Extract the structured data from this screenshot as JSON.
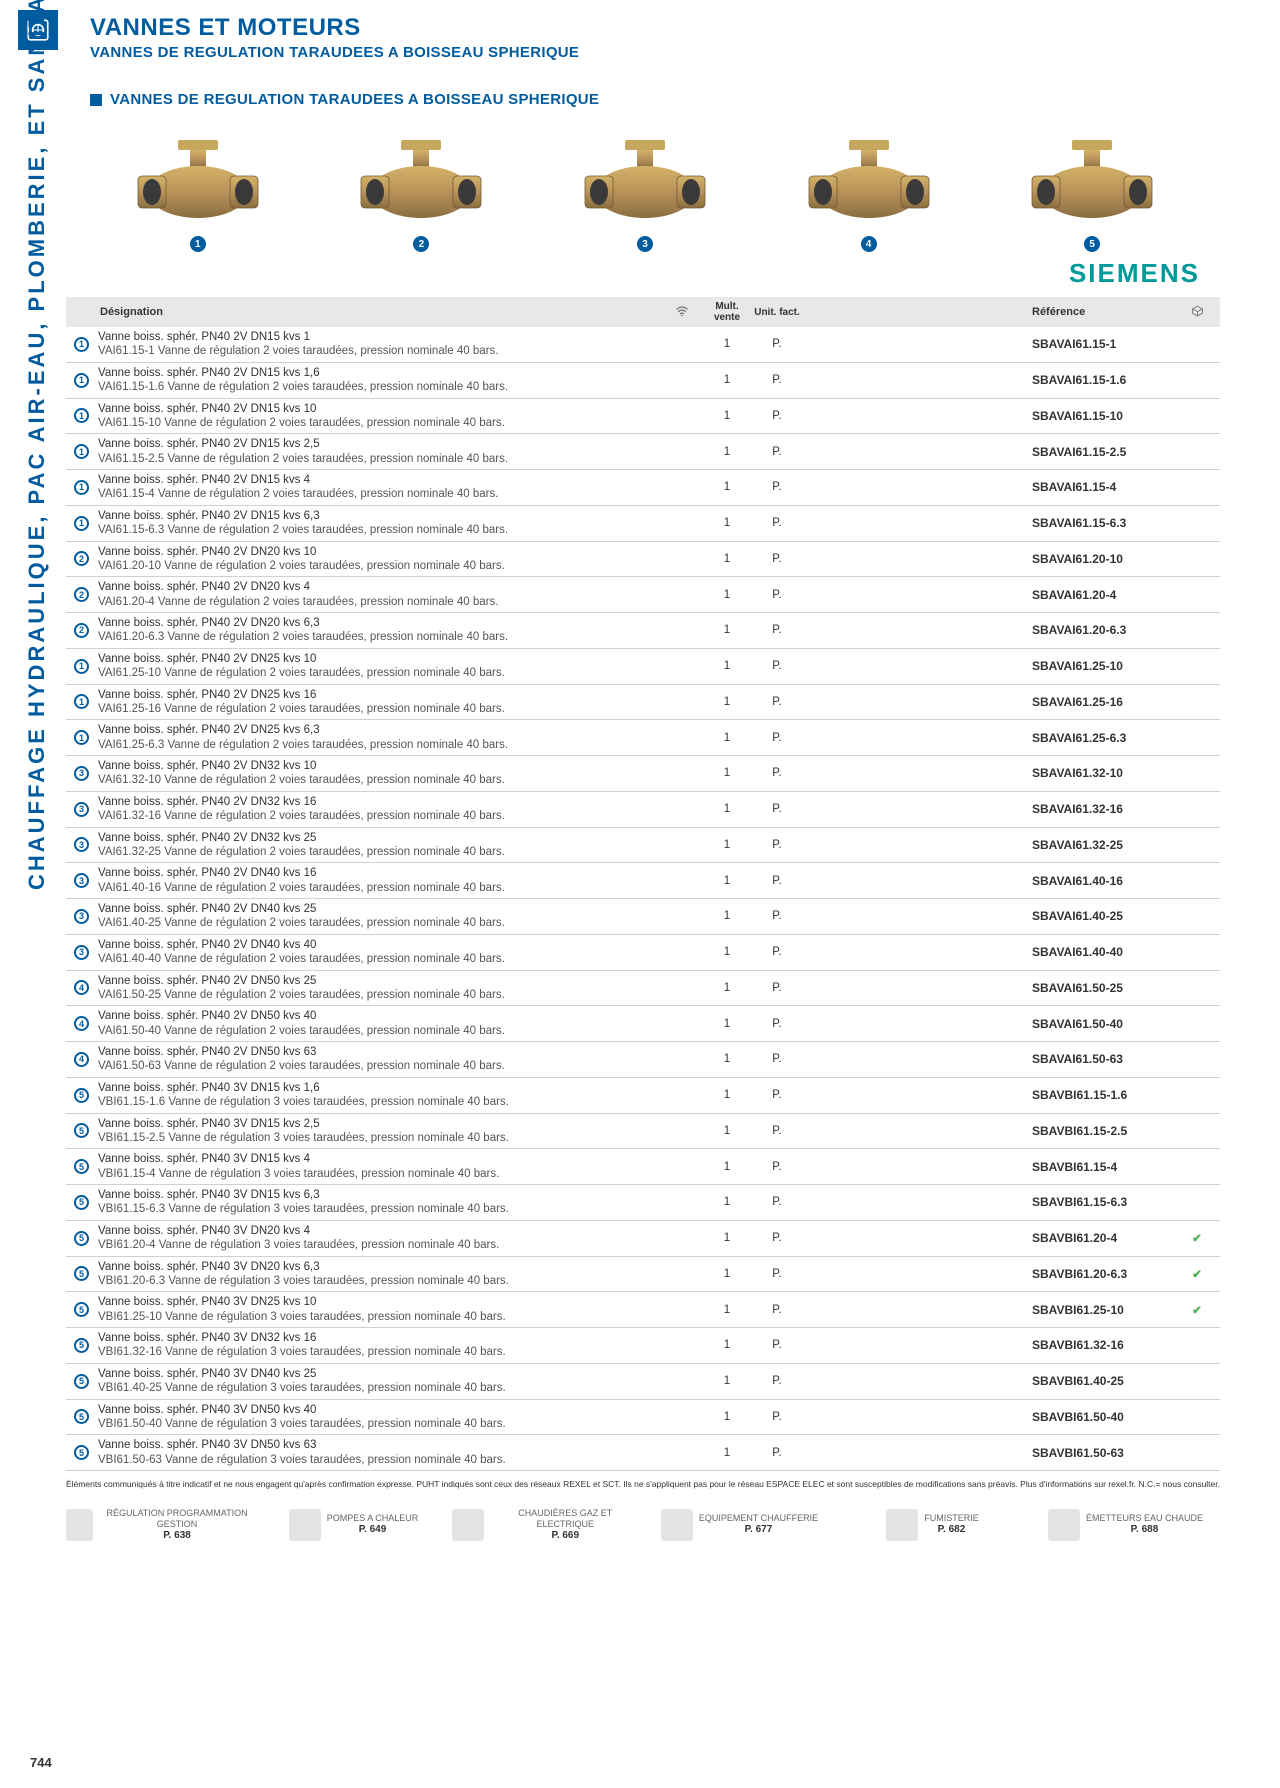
{
  "header": {
    "title": "VANNES ET MOTEURS",
    "subtitle": "VANNES DE REGULATION TARAUDEES A BOISSEAU SPHERIQUE",
    "section": "VANNES DE REGULATION TARAUDEES A BOISSEAU SPHERIQUE"
  },
  "brand": "SIEMENS",
  "side_label": "CHAUFFAGE HYDRAULIQUE, PAC AIR-EAU, PLOMBERIE, ET SANITAIRE",
  "page_number": "744",
  "colors": {
    "primary": "#005b9f",
    "brand": "#009999",
    "row_border": "#d0d0d0",
    "header_bg": "#e8e8e8",
    "check": "#4caf50"
  },
  "table": {
    "headers": {
      "designation": "Désignation",
      "mult": "Mult. vente",
      "unit": "Unit. fact.",
      "reference": "Référence"
    },
    "rows": [
      {
        "num": "1",
        "l1": "Vanne boiss. sphér. PN40 2V DN15 kvs 1",
        "l2": "VAI61.15-1 Vanne de régulation 2 voies taraudées, pression nominale 40 bars.",
        "mult": "1",
        "unit": "P.",
        "ref": "SBAVAI61.15-1",
        "chk": ""
      },
      {
        "num": "1",
        "l1": "Vanne boiss. sphér. PN40 2V DN15 kvs 1,6",
        "l2": "VAI61.15-1.6 Vanne de régulation 2 voies taraudées, pression nominale 40 bars.",
        "mult": "1",
        "unit": "P.",
        "ref": "SBAVAI61.15-1.6",
        "chk": ""
      },
      {
        "num": "1",
        "l1": "Vanne boiss. sphér. PN40 2V DN15 kvs 10",
        "l2": "VAI61.15-10 Vanne de régulation 2 voies taraudées, pression nominale 40 bars.",
        "mult": "1",
        "unit": "P.",
        "ref": "SBAVAI61.15-10",
        "chk": ""
      },
      {
        "num": "1",
        "l1": "Vanne boiss. sphér. PN40 2V DN15 kvs 2,5",
        "l2": "VAI61.15-2.5 Vanne de régulation 2 voies taraudées, pression nominale 40 bars.",
        "mult": "1",
        "unit": "P.",
        "ref": "SBAVAI61.15-2.5",
        "chk": ""
      },
      {
        "num": "1",
        "l1": "Vanne boiss. sphér. PN40 2V DN15 kvs 4",
        "l2": "VAI61.15-4 Vanne de régulation 2 voies taraudées, pression nominale 40 bars.",
        "mult": "1",
        "unit": "P.",
        "ref": "SBAVAI61.15-4",
        "chk": ""
      },
      {
        "num": "1",
        "l1": "Vanne boiss. sphér. PN40 2V DN15 kvs 6,3",
        "l2": "VAI61.15-6.3 Vanne de régulation 2 voies taraudées, pression nominale 40 bars.",
        "mult": "1",
        "unit": "P.",
        "ref": "SBAVAI61.15-6.3",
        "chk": ""
      },
      {
        "num": "2",
        "l1": "Vanne boiss. sphér. PN40 2V DN20 kvs 10",
        "l2": "VAI61.20-10 Vanne de régulation 2 voies taraudées, pression nominale 40 bars.",
        "mult": "1",
        "unit": "P.",
        "ref": "SBAVAI61.20-10",
        "chk": ""
      },
      {
        "num": "2",
        "l1": "Vanne boiss. sphér. PN40 2V DN20 kvs 4",
        "l2": "VAI61.20-4 Vanne de régulation 2 voies taraudées, pression nominale 40 bars.",
        "mult": "1",
        "unit": "P.",
        "ref": "SBAVAI61.20-4",
        "chk": ""
      },
      {
        "num": "2",
        "l1": "Vanne boiss. sphér. PN40 2V DN20 kvs 6,3",
        "l2": "VAI61.20-6.3 Vanne de régulation 2 voies taraudées, pression nominale 40 bars.",
        "mult": "1",
        "unit": "P.",
        "ref": "SBAVAI61.20-6.3",
        "chk": ""
      },
      {
        "num": "1",
        "l1": "Vanne boiss. sphér. PN40 2V DN25 kvs 10",
        "l2": "VAI61.25-10 Vanne de régulation 2 voies taraudées, pression nominale 40 bars.",
        "mult": "1",
        "unit": "P.",
        "ref": "SBAVAI61.25-10",
        "chk": ""
      },
      {
        "num": "1",
        "l1": "Vanne boiss. sphér. PN40 2V DN25 kvs 16",
        "l2": "VAI61.25-16 Vanne de régulation 2 voies taraudées, pression nominale 40 bars.",
        "mult": "1",
        "unit": "P.",
        "ref": "SBAVAI61.25-16",
        "chk": ""
      },
      {
        "num": "1",
        "l1": "Vanne boiss. sphér. PN40 2V DN25 kvs 6,3",
        "l2": "VAI61.25-6.3 Vanne de régulation 2 voies taraudées, pression nominale 40 bars.",
        "mult": "1",
        "unit": "P.",
        "ref": "SBAVAI61.25-6.3",
        "chk": ""
      },
      {
        "num": "3",
        "l1": "Vanne boiss. sphér. PN40 2V DN32 kvs 10",
        "l2": "VAI61.32-10 Vanne de régulation 2 voies taraudées, pression nominale 40 bars.",
        "mult": "1",
        "unit": "P.",
        "ref": "SBAVAI61.32-10",
        "chk": ""
      },
      {
        "num": "3",
        "l1": "Vanne boiss. sphér. PN40 2V DN32 kvs 16",
        "l2": "VAI61.32-16 Vanne de régulation 2 voies taraudées, pression nominale 40 bars.",
        "mult": "1",
        "unit": "P.",
        "ref": "SBAVAI61.32-16",
        "chk": ""
      },
      {
        "num": "3",
        "l1": "Vanne boiss. sphér. PN40 2V DN32 kvs 25",
        "l2": "VAI61.32-25 Vanne de régulation 2 voies taraudées, pression nominale 40 bars.",
        "mult": "1",
        "unit": "P.",
        "ref": "SBAVAI61.32-25",
        "chk": ""
      },
      {
        "num": "3",
        "l1": "Vanne boiss. sphér. PN40 2V DN40 kvs 16",
        "l2": "VAI61.40-16 Vanne de régulation 2 voies taraudées, pression nominale 40 bars.",
        "mult": "1",
        "unit": "P.",
        "ref": "SBAVAI61.40-16",
        "chk": ""
      },
      {
        "num": "3",
        "l1": "Vanne boiss. sphér. PN40 2V DN40 kvs 25",
        "l2": "VAI61.40-25 Vanne de régulation 2 voies taraudées, pression nominale 40 bars.",
        "mult": "1",
        "unit": "P.",
        "ref": "SBAVAI61.40-25",
        "chk": ""
      },
      {
        "num": "3",
        "l1": "Vanne boiss. sphér. PN40 2V DN40 kvs 40",
        "l2": "VAI61.40-40 Vanne de régulation 2 voies taraudées, pression nominale 40 bars.",
        "mult": "1",
        "unit": "P.",
        "ref": "SBAVAI61.40-40",
        "chk": ""
      },
      {
        "num": "4",
        "l1": "Vanne boiss. sphér. PN40 2V DN50 kvs 25",
        "l2": "VAI61.50-25 Vanne de régulation 2 voies taraudées, pression nominale 40 bars.",
        "mult": "1",
        "unit": "P.",
        "ref": "SBAVAI61.50-25",
        "chk": ""
      },
      {
        "num": "4",
        "l1": "Vanne boiss. sphér. PN40 2V DN50 kvs 40",
        "l2": "VAI61.50-40 Vanne de régulation 2 voies taraudées, pression nominale 40 bars.",
        "mult": "1",
        "unit": "P.",
        "ref": "SBAVAI61.50-40",
        "chk": ""
      },
      {
        "num": "4",
        "l1": "Vanne boiss. sphér. PN40 2V DN50 kvs 63",
        "l2": "VAI61.50-63 Vanne de régulation 2 voies taraudées, pression nominale 40 bars.",
        "mult": "1",
        "unit": "P.",
        "ref": "SBAVAI61.50-63",
        "chk": ""
      },
      {
        "num": "5",
        "l1": "Vanne boiss. sphér. PN40 3V DN15 kvs 1,6",
        "l2": "VBI61.15-1.6 Vanne de régulation 3 voies taraudées, pression nominale 40 bars.",
        "mult": "1",
        "unit": "P.",
        "ref": "SBAVBI61.15-1.6",
        "chk": ""
      },
      {
        "num": "5",
        "l1": "Vanne boiss. sphér. PN40 3V DN15 kvs 2,5",
        "l2": "VBI61.15-2.5 Vanne de régulation 3 voies taraudées, pression nominale 40 bars.",
        "mult": "1",
        "unit": "P.",
        "ref": "SBAVBI61.15-2.5",
        "chk": ""
      },
      {
        "num": "5",
        "l1": "Vanne boiss. sphér. PN40 3V DN15 kvs 4",
        "l2": "VBI61.15-4 Vanne de régulation 3 voies taraudées, pression nominale 40 bars.",
        "mult": "1",
        "unit": "P.",
        "ref": "SBAVBI61.15-4",
        "chk": ""
      },
      {
        "num": "5",
        "l1": "Vanne boiss. sphér. PN40 3V DN15 kvs 6,3",
        "l2": "VBI61.15-6.3 Vanne de régulation 3 voies taraudées, pression nominale 40 bars.",
        "mult": "1",
        "unit": "P.",
        "ref": "SBAVBI61.15-6.3",
        "chk": ""
      },
      {
        "num": "5",
        "l1": "Vanne boiss. sphér. PN40 3V DN20 kvs 4",
        "l2": "VBI61.20-4 Vanne de régulation 3 voies taraudées, pression nominale 40 bars.",
        "mult": "1",
        "unit": "P.",
        "ref": "SBAVBI61.20-4",
        "chk": "✔"
      },
      {
        "num": "5",
        "l1": "Vanne boiss. sphér. PN40 3V DN20 kvs 6,3",
        "l2": "VBI61.20-6.3 Vanne de régulation 3 voies taraudées, pression nominale 40 bars.",
        "mult": "1",
        "unit": "P.",
        "ref": "SBAVBI61.20-6.3",
        "chk": "✔"
      },
      {
        "num": "5",
        "l1": "Vanne boiss. sphér. PN40 3V DN25 kvs 10",
        "l2": "VBI61.25-10 Vanne de régulation 3 voies taraudées, pression nominale 40 bars.",
        "mult": "1",
        "unit": "P.",
        "ref": "SBAVBI61.25-10",
        "chk": "✔"
      },
      {
        "num": "5",
        "l1": "Vanne boiss. sphér. PN40 3V DN32 kvs 16",
        "l2": "VBI61.32-16 Vanne de régulation 3 voies taraudées, pression nominale 40 bars.",
        "mult": "1",
        "unit": "P.",
        "ref": "SBAVBI61.32-16",
        "chk": ""
      },
      {
        "num": "5",
        "l1": "Vanne boiss. sphér. PN40 3V DN40 kvs 25",
        "l2": "VBI61.40-25 Vanne de régulation 3 voies taraudées, pression nominale 40 bars.",
        "mult": "1",
        "unit": "P.",
        "ref": "SBAVBI61.40-25",
        "chk": ""
      },
      {
        "num": "5",
        "l1": "Vanne boiss. sphér. PN40 3V DN50 kvs 40",
        "l2": "VBI61.50-40 Vanne de régulation 3 voies taraudées, pression nominale 40 bars.",
        "mult": "1",
        "unit": "P.",
        "ref": "SBAVBI61.50-40",
        "chk": ""
      },
      {
        "num": "5",
        "l1": "Vanne boiss. sphér. PN40 3V DN50 kvs 63",
        "l2": "VBI61.50-63 Vanne de régulation 3 voies taraudées, pression nominale 40 bars.",
        "mult": "1",
        "unit": "P.",
        "ref": "SBAVBI61.50-63",
        "chk": ""
      }
    ]
  },
  "footnote": "Éléments communiqués à titre indicatif et ne nous engagent qu'après confirmation expresse. PUHT indiqués sont ceux des réseaux REXEL et SCT. Ils ne s'appliquent pas pour le réseau ESPACE ELEC et sont susceptibles de modifications sans préavis. Plus d'informations sur rexel.fr. N.C.= nous consulter.",
  "footer_nav": [
    {
      "label": "RÉGULATION PROGRAMMATION GESTION",
      "page": "P. 638"
    },
    {
      "label": "POMPES A CHALEUR",
      "page": "P. 649"
    },
    {
      "label": "CHAUDIÈRES GAZ ET ELECTRIQUE",
      "page": "P. 669"
    },
    {
      "label": "EQUIPEMENT CHAUFFERIE",
      "page": "P. 677"
    },
    {
      "label": "FUMISTERIE",
      "page": "P. 682"
    },
    {
      "label": "ÉMETTEURS EAU CHAUDE",
      "page": "P. 688"
    }
  ],
  "product_images": [
    {
      "num": "1"
    },
    {
      "num": "2"
    },
    {
      "num": "3"
    },
    {
      "num": "4"
    },
    {
      "num": "5"
    }
  ]
}
